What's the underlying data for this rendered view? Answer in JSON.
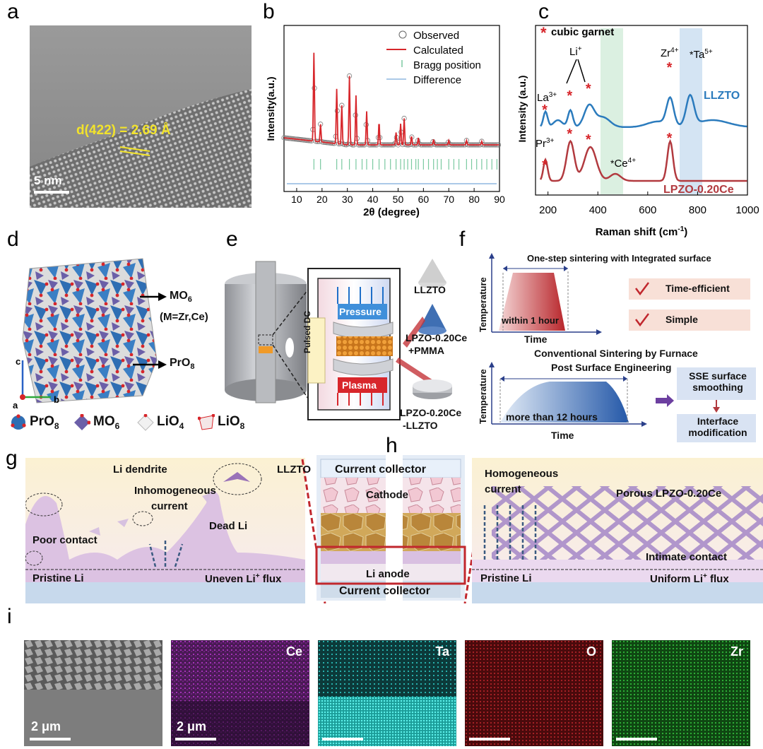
{
  "panels": {
    "a": {
      "label": "a",
      "annotation": "d(422) = 2.69 Å",
      "scale": "5 nm"
    },
    "b": {
      "label": "b",
      "legend": [
        "Observed",
        "Calculated",
        "Bragg position",
        "Difference"
      ],
      "xlabel": "2θ (degree)",
      "ylabel": "Intensity(a.u.)",
      "xticks": [
        "10",
        "20",
        "30",
        "40",
        "50",
        "60",
        "70",
        "80",
        "90"
      ]
    },
    "c": {
      "label": "c",
      "legend": "cubic garnet",
      "xlabel": "Raman shift (cm",
      "xlabel_sup": "-1",
      "xlabel_end": ")",
      "ylabel": "Intensity (a.u.)",
      "xticks": [
        "200",
        "400",
        "600",
        "800",
        "1000"
      ],
      "series": [
        "LLZTO",
        "LPZO-0.20Ce"
      ],
      "ions": {
        "li": "Li",
        "li_sup": "+",
        "la": "La",
        "la_sup": "3+",
        "zr": "Zr",
        "zr_sup": "4+",
        "ta": "Ta",
        "ta_sup": "5+",
        "pr": "Pr",
        "pr_sup": "3+",
        "ce": "Ce",
        "ce_sup": "4+"
      }
    },
    "d": {
      "label": "d",
      "mo6": "MO",
      "mo6_sub": "6",
      "mo6_note": "(M=Zr,Ce)",
      "pro8": "PrO",
      "pro8_sub": "8",
      "legend": [
        {
          "name": "PrO",
          "sub": "8"
        },
        {
          "name": "MO",
          "sub": "6"
        },
        {
          "name": "LiO",
          "sub": "4"
        },
        {
          "name": "LiO",
          "sub": "8"
        }
      ],
      "axes": [
        "c",
        "a",
        "b"
      ]
    },
    "e": {
      "label": "e",
      "pressure": "Pressure",
      "plasma": "Plasma",
      "pulsed": "Pulsed DC",
      "llzto": "LLZTO",
      "lpzo_pmma_1": "LPZO-0.20Ce",
      "lpzo_pmma_2": "+PMMA",
      "lpzo_llzto_1": "LPZO-0.20Ce",
      "lpzo_llzto_2": "-LLZTO"
    },
    "f": {
      "label": "f",
      "title_top": "One-step sintering with Integrated surface",
      "time_short": "within 1 hour",
      "ylabel": "Temperature",
      "xlabel": "Time",
      "benefits": [
        "Time-efficient",
        "Simple"
      ],
      "title_bottom_1": "Conventional Sintering by  Furnace",
      "title_bottom_2": "Post Surface Engineering",
      "time_long": "more than 12 hours",
      "steps": [
        "SSE surface smoothing",
        "Interface modification"
      ]
    },
    "g": {
      "label": "g",
      "li_dendrite": "Li dendrite",
      "llzto": "LLZTO",
      "inhomo_1": "Inhomogeneous",
      "inhomo_2": "current",
      "dead_li": "Dead Li",
      "poor_contact": "Poor contact",
      "pristine": "Pristine Li",
      "uneven": "Uneven Li",
      "uneven_sup": "+",
      "uneven_end": " flux"
    },
    "h": {
      "label": "h",
      "current_collector_top": "Current collector",
      "cathode": "Cathode",
      "li_anode": "Li anode",
      "current_collector_bottom": "Current collector",
      "homo_1": "Homogeneous",
      "homo_2": "current",
      "porous": "Porous LPZO-0.20Ce",
      "intimate": "Intimate contact",
      "pristine": "Pristine Li",
      "uniform": "Uniform Li",
      "uniform_sup": "+",
      "uniform_end": " flux"
    },
    "i": {
      "label": "i",
      "maps": [
        {
          "name": "",
          "color": "#8a8a8a"
        },
        {
          "name": "Ce",
          "color": "#b233c8"
        },
        {
          "name": "Ta",
          "color": "#2fd6d0"
        },
        {
          "name": "O",
          "color": "#c0272d"
        },
        {
          "name": "Zr",
          "color": "#2fb83a"
        }
      ],
      "scale_1": "2 μm",
      "scale_2": "2 μm"
    }
  },
  "colors": {
    "red": "#d7262b",
    "blue": "#2b7bbd",
    "pink": "#c9494e",
    "green": "#7ac9a0"
  }
}
